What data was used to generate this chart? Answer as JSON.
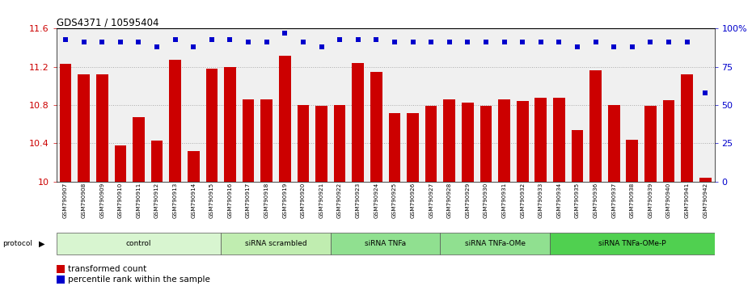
{
  "title": "GDS4371 / 10595404",
  "samples": [
    "GSM790907",
    "GSM790908",
    "GSM790909",
    "GSM790910",
    "GSM790911",
    "GSM790912",
    "GSM790913",
    "GSM790914",
    "GSM790915",
    "GSM790916",
    "GSM790917",
    "GSM790918",
    "GSM790919",
    "GSM790920",
    "GSM790921",
    "GSM790922",
    "GSM790923",
    "GSM790924",
    "GSM790925",
    "GSM790926",
    "GSM790927",
    "GSM790928",
    "GSM790929",
    "GSM790930",
    "GSM790931",
    "GSM790932",
    "GSM790933",
    "GSM790934",
    "GSM790935",
    "GSM790936",
    "GSM790937",
    "GSM790938",
    "GSM790939",
    "GSM790940",
    "GSM790941",
    "GSM790942"
  ],
  "bar_values": [
    11.23,
    11.12,
    11.12,
    10.38,
    10.67,
    10.43,
    11.27,
    10.32,
    11.18,
    11.2,
    10.86,
    10.86,
    11.32,
    10.8,
    10.79,
    10.8,
    11.24,
    11.15,
    10.72,
    10.72,
    10.79,
    10.86,
    10.83,
    10.79,
    10.86,
    10.84,
    10.88,
    10.88,
    10.54,
    11.16,
    10.8,
    10.44,
    10.79,
    10.85,
    11.12,
    10.04
  ],
  "percentile_values": [
    93,
    91,
    91,
    91,
    91,
    88,
    93,
    88,
    93,
    93,
    91,
    91,
    97,
    91,
    88,
    93,
    93,
    93,
    91,
    91,
    91,
    91,
    91,
    91,
    91,
    91,
    91,
    91,
    88,
    91,
    88,
    88,
    91,
    91,
    91,
    58
  ],
  "bar_color": "#cc0000",
  "dot_color": "#0000cc",
  "ylim_min": 10.0,
  "ylim_max": 11.6,
  "y_ticks": [
    10.0,
    10.4,
    10.8,
    11.2,
    11.6
  ],
  "y_tick_labels": [
    "10",
    "10.4",
    "10.8",
    "11.2",
    "11.6"
  ],
  "y2_ticks": [
    0,
    25,
    50,
    75,
    100
  ],
  "y2_tick_labels": [
    "0",
    "25",
    "50",
    "75",
    "100%"
  ],
  "group_labels": [
    "control",
    "siRNA scrambled",
    "siRNA TNFa",
    "siRNA TNFa-OMe",
    "siRNA TNFa-OMe-P"
  ],
  "group_colors": [
    "#d8f5d0",
    "#c0edb0",
    "#90e090",
    "#90e090",
    "#50d050"
  ],
  "group_starts": [
    0,
    9,
    15,
    21,
    27
  ],
  "group_ends": [
    9,
    15,
    21,
    27,
    36
  ],
  "bar_color_hex": "#cc0000",
  "dot_color_hex": "#0000cc",
  "grid_color": "#aaaaaa",
  "bg_color": "#f0f0f0",
  "bar_width": 0.65
}
